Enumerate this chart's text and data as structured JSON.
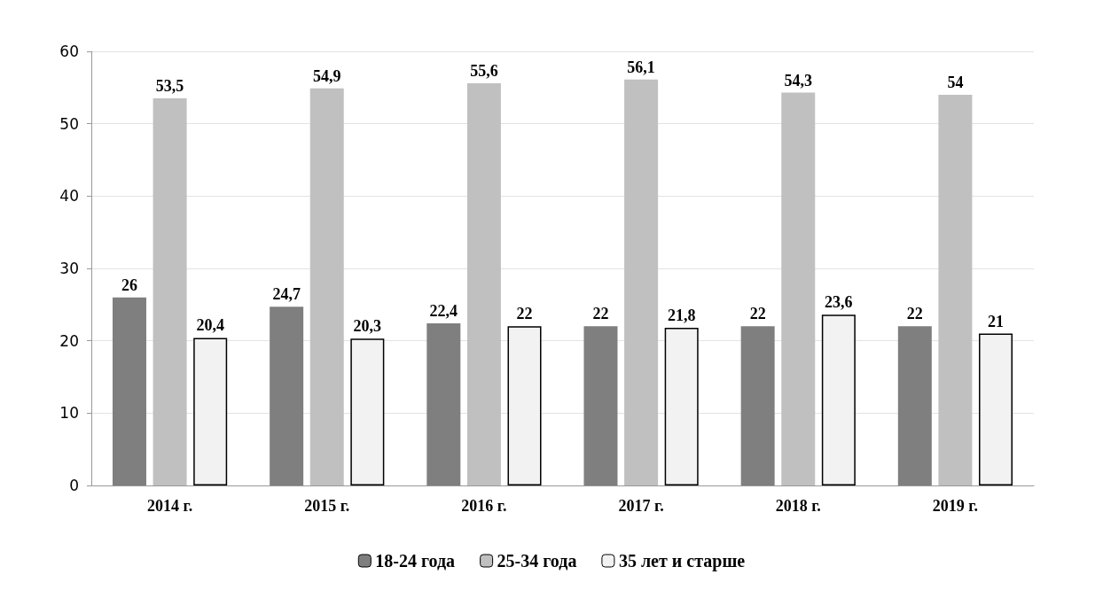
{
  "chart_data": {
    "type": "bar",
    "categories": [
      "2014 г.",
      "2015 г.",
      "2016 г.",
      "2017 г.",
      "2018 г.",
      "2019 г."
    ],
    "series": [
      {
        "name": "18-24 года",
        "color": "#7f7f7f",
        "values": [
          26,
          24.7,
          22.4,
          22,
          22,
          22
        ],
        "value_labels": [
          "26",
          "24,7",
          "22,4",
          "22",
          "22",
          "22"
        ]
      },
      {
        "name": "25-34 года",
        "color": "#c0c0c0",
        "values": [
          53.5,
          54.9,
          55.6,
          56.1,
          54.3,
          54
        ],
        "value_labels": [
          "53,5",
          "54,9",
          "55,6",
          "56,1",
          "54,3",
          "54"
        ]
      },
      {
        "name": "35 лет и старше",
        "color": "#f2f2f2",
        "values": [
          20.4,
          20.3,
          22,
          21.8,
          23.6,
          21
        ],
        "value_labels": [
          "20,4",
          "20,3",
          "22",
          "21,8",
          "23,6",
          "21"
        ]
      }
    ],
    "ylim": [
      0,
      60
    ],
    "yticks": [
      0,
      10,
      20,
      30,
      40,
      50,
      60
    ],
    "grid": "y",
    "legend": "bottom"
  }
}
